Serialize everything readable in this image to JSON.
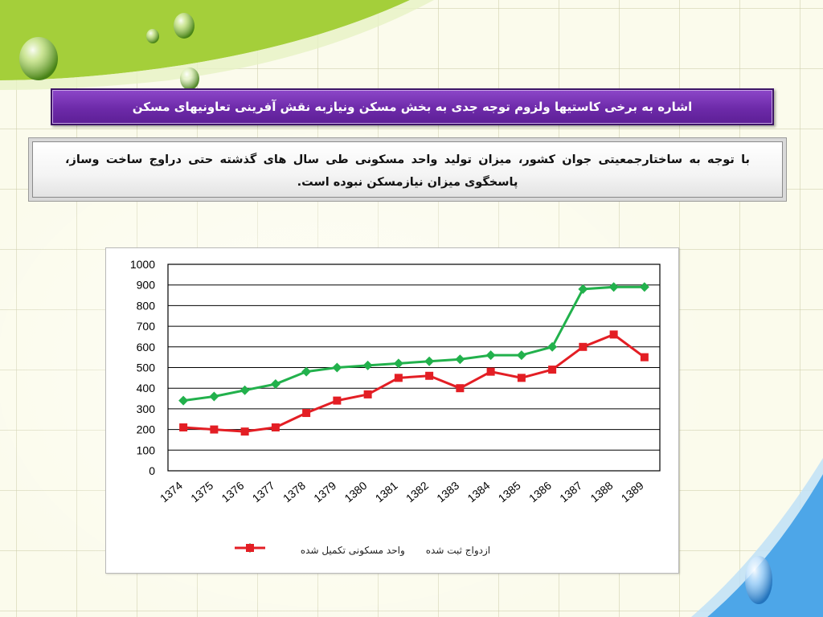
{
  "title": "اشاره به برخی کاستیها ولزوم توجه جدی به بخش مسکن ونیازبه نقش آفرینی تعاونیهای مسکن",
  "body_text": "با توجه به ساختارجمعیتی جوان کشور، میزان تولید واحد مسکونی طی سال های گذشته حتی دراوج ساخت وساز، پاسخگوی میزان نیازمسکن نبوده است.",
  "colors": {
    "title_bg": "#6d2aa9",
    "series_green": "#22b14c",
    "series_red": "#e31e24",
    "deco_green": "#9bc83c",
    "deco_blue": "#4da6e8"
  },
  "chart_data": {
    "type": "line",
    "categories": [
      "1374",
      "1375",
      "1376",
      "1377",
      "1378",
      "1379",
      "1380",
      "1381",
      "1382",
      "1383",
      "1384",
      "1385",
      "1386",
      "1387",
      "1388",
      "1389"
    ],
    "series": [
      {
        "name": "ازدواج ثبت شده",
        "color": "#22b14c",
        "marker": "diamond",
        "values": [
          340,
          360,
          390,
          420,
          480,
          500,
          510,
          520,
          530,
          540,
          560,
          560,
          600,
          880,
          890,
          890
        ]
      },
      {
        "name": "واحد مسکونی تکمیل شده",
        "color": "#e31e24",
        "marker": "square",
        "values": [
          210,
          200,
          190,
          210,
          280,
          340,
          370,
          450,
          460,
          400,
          480,
          450,
          490,
          600,
          660,
          550
        ]
      }
    ],
    "ylim": [
      0,
      1000
    ],
    "yticks": [
      0,
      100,
      200,
      300,
      400,
      500,
      600,
      700,
      800,
      900,
      1000
    ],
    "grid": true,
    "legend_position": "bottom"
  }
}
